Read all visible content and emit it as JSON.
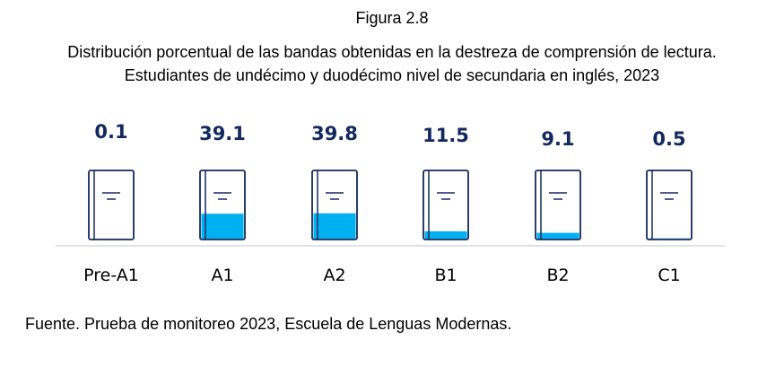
{
  "figure_label": "Figura 2.8",
  "title_line1": "Distribución porcentual de las bandas obtenidas en la destreza de comprensión de lectura.",
  "title_line2": "Estudiantes de undécimo y duodécimo nivel de secundaria en inglés, 2023",
  "source": "Fuente. Prueba de monitoreo 2023, Escuela de Lenguas Modernas.",
  "colors": {
    "icon_outline": "#13295e",
    "fill": "#00b0f0",
    "value_text": "#13295e",
    "baseline": "#d9d9d9"
  },
  "chart_data": {
    "type": "bar",
    "title": "",
    "xlabel": "",
    "ylabel": "",
    "ylim": [
      0,
      100
    ],
    "categories": [
      "Pre-A1",
      "A1",
      "A2",
      "B1",
      "B2",
      "C1"
    ],
    "values": [
      0.1,
      39.1,
      39.8,
      11.5,
      9.1,
      0.5
    ],
    "value_labels": [
      "0.1",
      "39.1",
      "39.8",
      "11.5",
      "9.1",
      "0.5"
    ]
  }
}
